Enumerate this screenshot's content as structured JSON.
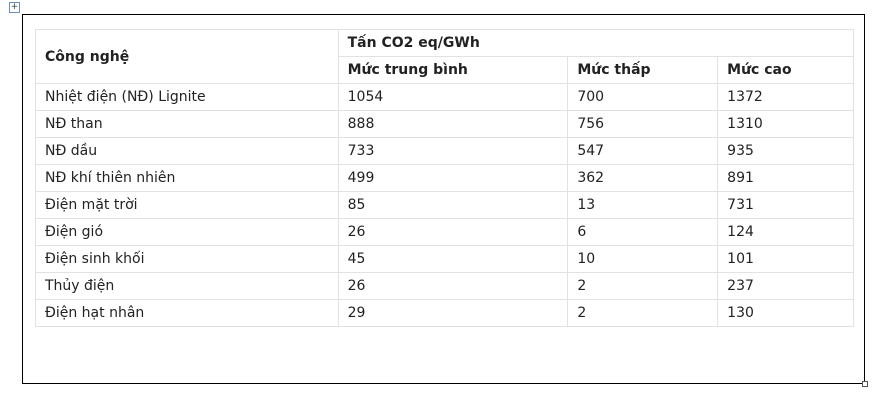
{
  "table": {
    "header": {
      "first": "Công nghệ",
      "group": "Tấn CO2 eq/GWh",
      "columns": [
        "Mức trung bình",
        "Mức thấp",
        "Mức cao"
      ]
    },
    "rows": [
      [
        "Nhiệt điện (NĐ) Lignite",
        1054,
        700,
        1372
      ],
      [
        "NĐ than",
        888,
        756,
        1310
      ],
      [
        "NĐ dầu",
        733,
        547,
        935
      ],
      [
        "NĐ khí thiên nhiên",
        499,
        362,
        891
      ],
      [
        "Điện mặt trời",
        85,
        13,
        731
      ],
      [
        "Điện gió",
        26,
        6,
        124
      ],
      [
        "Điện sinh khối",
        45,
        10,
        101
      ],
      [
        "Thủy điện",
        26,
        2,
        237
      ],
      [
        "Điện hạt nhân",
        29,
        2,
        130
      ]
    ]
  }
}
